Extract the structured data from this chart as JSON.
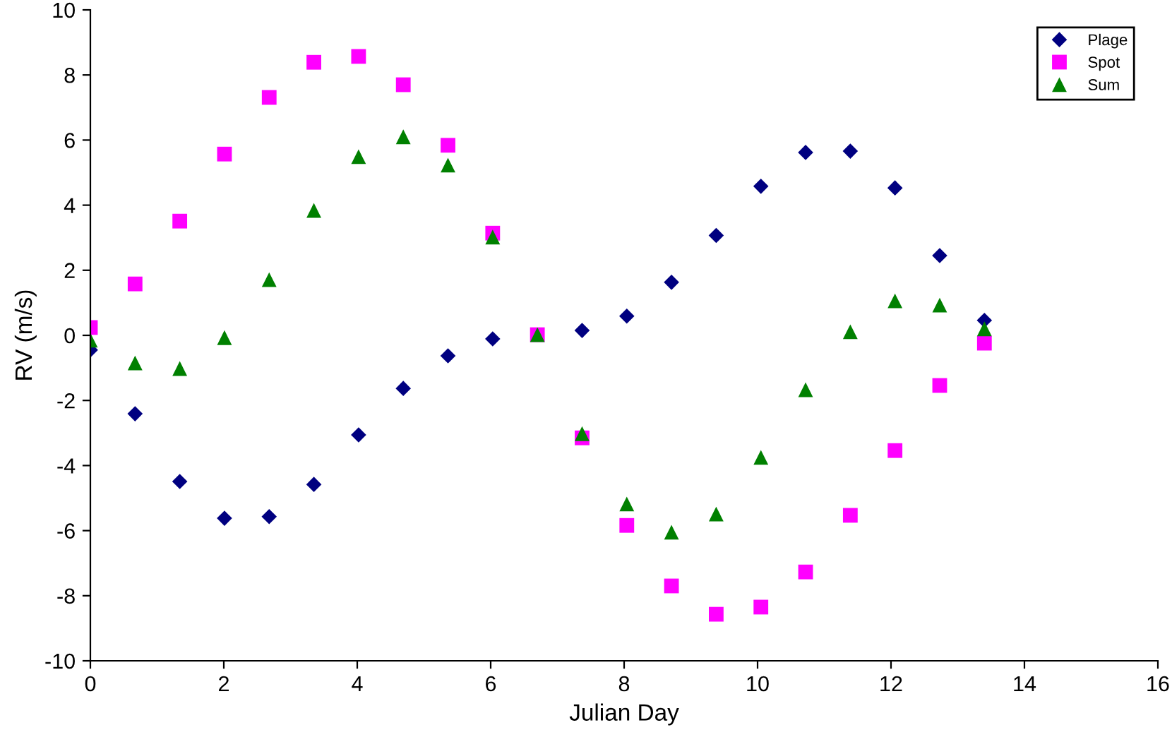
{
  "chart_data": {
    "type": "scatter",
    "xlabel": "Julian Day",
    "ylabel": "RV (m/s)",
    "x": [
      0,
      0.67,
      1.34,
      2.01,
      2.68,
      3.35,
      4.02,
      4.69,
      5.36,
      6.03,
      6.7,
      7.37,
      8.04,
      8.71,
      9.38,
      10.05,
      10.72,
      11.39,
      12.06,
      12.73,
      13.4
    ],
    "series": [
      {
        "name": "Plage",
        "color": "#000080",
        "marker": "diamond",
        "values": [
          -0.45,
          -2.41,
          -4.49,
          -5.62,
          -5.57,
          -4.58,
          -3.06,
          -1.63,
          -0.63,
          -0.11,
          null,
          0.15,
          0.59,
          1.63,
          3.07,
          4.58,
          5.62,
          5.66,
          4.53,
          2.45,
          0.46
        ]
      },
      {
        "name": "Spot",
        "color": "#ff00ff",
        "marker": "square",
        "values": [
          0.24,
          1.58,
          3.51,
          5.57,
          7.31,
          8.39,
          8.57,
          7.7,
          5.84,
          3.14,
          0.02,
          -3.15,
          -5.84,
          -7.7,
          -8.57,
          -8.35,
          -7.27,
          -5.53,
          -3.54,
          -1.54,
          -0.24
        ]
      },
      {
        "name": "Sum",
        "color": "#008000",
        "marker": "triangle",
        "values": [
          -0.15,
          -0.85,
          -1.02,
          -0.07,
          1.71,
          3.84,
          5.49,
          6.1,
          5.23,
          3.02,
          0.02,
          -3.02,
          -5.18,
          -6.05,
          -5.49,
          -3.75,
          -1.67,
          0.11,
          1.06,
          0.93,
          0.2
        ]
      }
    ],
    "xlim": [
      0,
      16
    ],
    "xticks": [
      0,
      2,
      4,
      6,
      8,
      10,
      12,
      14,
      16
    ],
    "ylim": [
      -10,
      10
    ],
    "yticks": [
      -10,
      -8,
      -6,
      -4,
      -2,
      0,
      2,
      4,
      6,
      8,
      10
    ],
    "grid": false,
    "legend": "top right"
  }
}
